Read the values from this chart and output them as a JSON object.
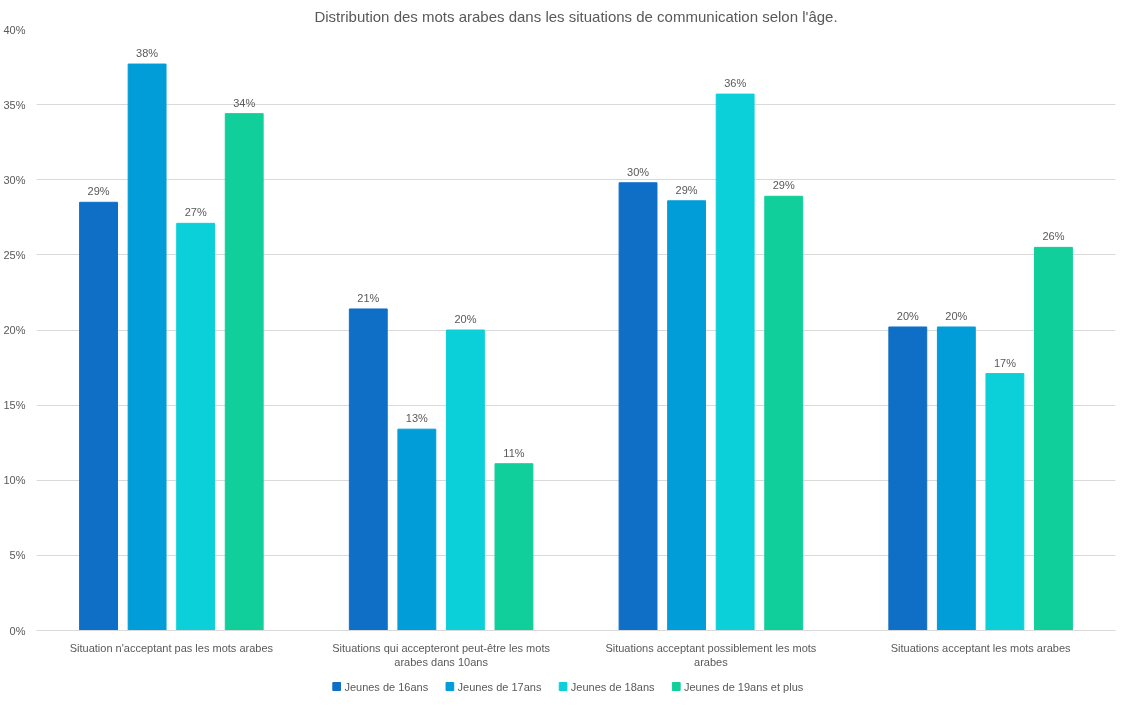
{
  "chart_data": {
    "type": "bar",
    "title": "Distribution des mots arabes dans les situations de communication selon l'âge.",
    "categories": [
      "Situation n'acceptant pas les mots arabes",
      "Situations qui accepteront peut-être les mots arabes dans 10ans",
      "Situations acceptant possiblement les mots arabes",
      "Situations acceptant les mots arabes"
    ],
    "series": [
      {
        "name": "Jeunes de 16ans",
        "color": "#0f6fc6",
        "values": [
          28.5,
          21.4,
          29.8,
          20.2
        ],
        "value_labels": [
          "29%",
          "21%",
          "30%",
          "20%"
        ]
      },
      {
        "name": "Jeunes de 17ans",
        "color": "#009dd9",
        "values": [
          37.7,
          13.4,
          28.6,
          20.2
        ],
        "value_labels": [
          "38%",
          "13%",
          "29%",
          "20%"
        ]
      },
      {
        "name": "Jeunes de 18ans",
        "color": "#0bd0d9",
        "values": [
          27.1,
          20.0,
          35.7,
          17.1
        ],
        "value_labels": [
          "27%",
          "20%",
          "36%",
          "17%"
        ]
      },
      {
        "name": "Jeunes de 19ans et plus",
        "color": "#10cf9b",
        "values": [
          34.4,
          11.1,
          28.9,
          25.5
        ],
        "value_labels": [
          "34%",
          "11%",
          "29%",
          "26%"
        ]
      }
    ],
    "ylim": [
      0,
      40
    ],
    "yticks": [
      {
        "value": 0,
        "label": "0%"
      },
      {
        "value": 5,
        "label": "5%"
      },
      {
        "value": 10,
        "label": "10%"
      },
      {
        "value": 15,
        "label": "15%"
      },
      {
        "value": 20,
        "label": "20%"
      },
      {
        "value": 25,
        "label": "25%"
      },
      {
        "value": 30,
        "label": "30%"
      },
      {
        "value": 35,
        "label": "35%"
      },
      {
        "value": 40,
        "label": "40%"
      }
    ],
    "grid": "y",
    "legend": "bottom"
  }
}
